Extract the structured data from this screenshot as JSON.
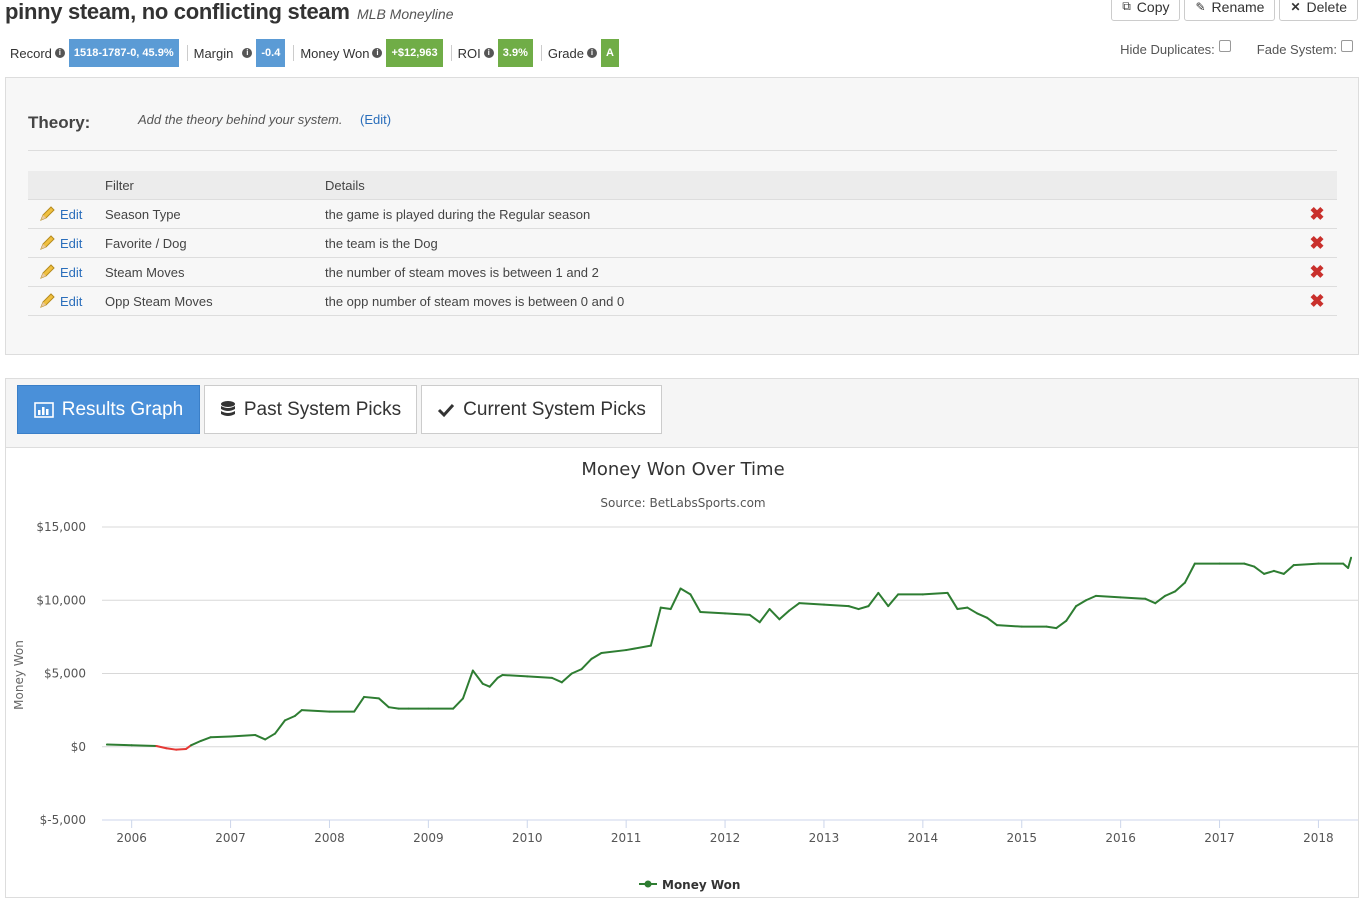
{
  "header": {
    "title": "pinny steam, no conflicting steam",
    "subtitle": "MLB Moneyline",
    "buttons": {
      "copy": "Copy",
      "rename": "Rename",
      "delete": "Delete"
    }
  },
  "stats": {
    "record_label": "Record",
    "record_value": "1518-1787-0, 45.9%",
    "margin_label": "Margin",
    "margin_value": "-0.4",
    "money_label": "Money Won",
    "money_value": "+$12,963",
    "roi_label": "ROI",
    "roi_value": "3.9%",
    "grade_label": "Grade",
    "grade_value": "A",
    "colors": {
      "blue": "#5b9bd5",
      "green": "#70ad47"
    }
  },
  "options": {
    "hide_duplicates": "Hide Duplicates:",
    "fade_system": "Fade System:"
  },
  "theory": {
    "label": "Theory:",
    "text": "Add the theory behind your system.",
    "edit": "(Edit)"
  },
  "filters": {
    "headers": {
      "filter": "Filter",
      "details": "Details"
    },
    "edit_label": "Edit",
    "rows": [
      {
        "filter": "Season Type",
        "details": "the game is played during the Regular season"
      },
      {
        "filter": "Favorite / Dog",
        "details": "the team is the Dog"
      },
      {
        "filter": "Steam Moves",
        "details": "the number of steam moves is between 1 and 2"
      },
      {
        "filter": "Opp Steam Moves",
        "details": "the opp number of steam moves is between 0 and 0"
      }
    ]
  },
  "tabs": {
    "results_graph": "Results Graph",
    "past_picks": "Past System Picks",
    "current_picks": "Current System Picks"
  },
  "chart_data": {
    "type": "line",
    "title": "Money Won Over Time",
    "subtitle": "Source: BetLabsSports.com",
    "xlabel": "",
    "ylabel": "Money Won",
    "ylim": [
      -5000,
      15000
    ],
    "yticks": [
      -5000,
      0,
      5000,
      10000,
      15000
    ],
    "ytick_labels": [
      "$-5,000",
      "$0",
      "$5,000",
      "$10,000",
      "$15,000"
    ],
    "xlim": [
      2005.7,
      2018.4
    ],
    "xticks": [
      2006,
      2007,
      2008,
      2009,
      2010,
      2011,
      2012,
      2013,
      2014,
      2015,
      2016,
      2017,
      2018
    ],
    "xtick_labels": [
      "2006",
      "2007",
      "2008",
      "2009",
      "2010",
      "2011",
      "2012",
      "2013",
      "2014",
      "2015",
      "2016",
      "2017",
      "2018"
    ],
    "grid": true,
    "legend": "bottom-center",
    "series": [
      {
        "name": "Money Won",
        "color": "#2e7d32",
        "negative_color": "#e53935",
        "x": [
          2005.75,
          2006.0,
          2006.25,
          2006.35,
          2006.45,
          2006.55,
          2006.6,
          2006.7,
          2006.8,
          2007.0,
          2007.25,
          2007.35,
          2007.45,
          2007.55,
          2007.65,
          2007.72,
          2008.0,
          2008.25,
          2008.35,
          2008.5,
          2008.6,
          2008.7,
          2008.8,
          2009.0,
          2009.25,
          2009.35,
          2009.45,
          2009.55,
          2009.62,
          2009.7,
          2009.75,
          2010.0,
          2010.25,
          2010.35,
          2010.45,
          2010.55,
          2010.65,
          2010.75,
          2011.0,
          2011.25,
          2011.35,
          2011.45,
          2011.55,
          2011.65,
          2011.75,
          2012.0,
          2012.25,
          2012.35,
          2012.45,
          2012.55,
          2012.65,
          2012.75,
          2013.0,
          2013.25,
          2013.35,
          2013.45,
          2013.55,
          2013.65,
          2013.75,
          2014.0,
          2014.25,
          2014.35,
          2014.45,
          2014.55,
          2014.65,
          2014.75,
          2015.0,
          2015.25,
          2015.35,
          2015.45,
          2015.55,
          2015.65,
          2015.75,
          2016.0,
          2016.25,
          2016.35,
          2016.45,
          2016.55,
          2016.65,
          2016.75,
          2017.0,
          2017.25,
          2017.35,
          2017.45,
          2017.55,
          2017.65,
          2017.75,
          2018.0,
          2018.25,
          2018.3,
          2018.33
        ],
        "y": [
          150,
          100,
          50,
          -100,
          -200,
          -150,
          100,
          400,
          650,
          700,
          800,
          500,
          900,
          1800,
          2100,
          2500,
          2400,
          2400,
          3400,
          3300,
          2700,
          2600,
          2600,
          2600,
          2600,
          3300,
          5200,
          4300,
          4100,
          4700,
          4900,
          4800,
          4700,
          4400,
          5000,
          5300,
          6000,
          6400,
          6600,
          6900,
          9500,
          9400,
          10800,
          10400,
          9200,
          9100,
          9000,
          8500,
          9400,
          8700,
          9300,
          9800,
          9700,
          9600,
          9400,
          9600,
          10500,
          9600,
          10400,
          10400,
          10500,
          9400,
          9500,
          9100,
          8800,
          8300,
          8200,
          8200,
          8100,
          8600,
          9600,
          10000,
          10300,
          10200,
          10100,
          9800,
          10300,
          10600,
          11200,
          12500,
          12500,
          12500,
          12300,
          11800,
          12000,
          11800,
          12400,
          12500,
          12500,
          12200,
          12900
        ]
      }
    ]
  }
}
